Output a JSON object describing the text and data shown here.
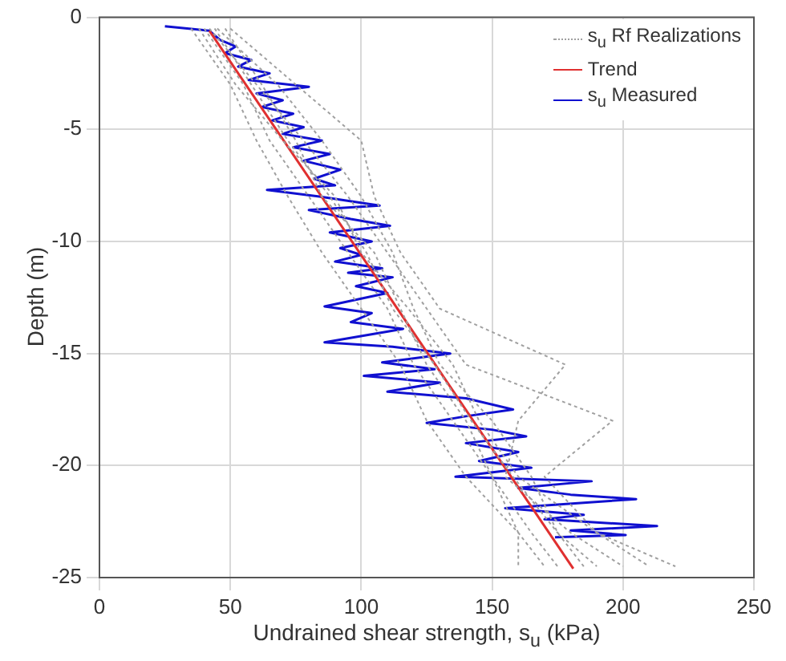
{
  "chart_data": {
    "type": "line",
    "xlabel": "Undrained shear strength, s$_{u}$ (kPa)",
    "ylabel": "Depth (m)",
    "xlim": [
      0,
      250
    ],
    "xticks": [
      0,
      50,
      100,
      150,
      200,
      250
    ],
    "ylim": [
      -25,
      0
    ],
    "yticks": [
      -25,
      -20,
      -15,
      -10,
      -5,
      0
    ],
    "grid": true,
    "legend": "top right",
    "marker": "none",
    "series": [
      {
        "name": "s$_{u}$ Rf Realizations",
        "color": "#a0a0a0",
        "line_style": "dotted",
        "x": [
          40,
          55,
          65,
          80,
          95,
          110,
          120,
          135,
          150,
          165,
          175
        ],
        "values": [
          -0.5,
          -3,
          -5.5,
          -8,
          -10.5,
          -13,
          -15.5,
          -18,
          -20.5,
          -23,
          -24.5
        ]
      },
      {
        "color": "#a0a0a0",
        "line_style": "dotted",
        "x": [
          45,
          68,
          85,
          100,
          112,
          120,
          130,
          150,
          165,
          175,
          185
        ],
        "values": [
          -0.5,
          -3,
          -5.5,
          -8,
          -10.5,
          -13,
          -15.5,
          -18,
          -20.5,
          -23,
          -24.5
        ]
      },
      {
        "color": "#a0a0a0",
        "line_style": "dotted",
        "x": [
          35,
          50,
          60,
          72,
          85,
          100,
          115,
          125,
          140,
          160,
          170
        ],
        "values": [
          -0.5,
          -3,
          -5.5,
          -8,
          -10.5,
          -13,
          -15.5,
          -18,
          -20.5,
          -23,
          -24.5
        ]
      },
      {
        "color": "#a0a0a0",
        "line_style": "dotted",
        "x": [
          50,
          75,
          100,
          105,
          115,
          130,
          178,
          160,
          155,
          180,
          200
        ],
        "values": [
          -0.5,
          -3,
          -5.5,
          -8,
          -10.5,
          -13,
          -15.5,
          -18,
          -20.5,
          -23,
          -24.5
        ]
      },
      {
        "color": "#a0a0a0",
        "line_style": "dotted",
        "x": [
          42,
          60,
          78,
          95,
          110,
          125,
          140,
          196,
          170,
          190,
          220
        ],
        "values": [
          -0.5,
          -3,
          -5.5,
          -8,
          -10.5,
          -13,
          -15.5,
          -18,
          -20.5,
          -23,
          -24.5
        ]
      },
      {
        "color": "#a0a0a0",
        "line_style": "dotted",
        "x": [
          38,
          52,
          70,
          90,
          100,
          118,
          135,
          145,
          160,
          190,
          210
        ],
        "values": [
          -0.5,
          -3,
          -5.5,
          -8,
          -10.5,
          -13,
          -15.5,
          -18,
          -20.5,
          -23,
          -24.5
        ]
      },
      {
        "color": "#a0a0a0",
        "line_style": "dotted",
        "x": [
          48,
          62,
          75,
          85,
          105,
          115,
          125,
          140,
          150,
          160,
          160
        ],
        "values": [
          -0.5,
          -3,
          -5.5,
          -8,
          -10.5,
          -13,
          -15.5,
          -18,
          -20.5,
          -23,
          -24.5
        ]
      },
      {
        "color": "#a0a0a0",
        "line_style": "dotted",
        "x": [
          44,
          58,
          72,
          88,
          102,
          112,
          128,
          142,
          158,
          175,
          190
        ],
        "values": [
          -0.5,
          -3,
          -5.5,
          -8,
          -10.5,
          -13,
          -15.5,
          -18,
          -20.5,
          -23,
          -24.5
        ]
      },
      {
        "name": "Trend",
        "color": "#e03030",
        "line_style": "solid",
        "x": [
          42,
          181
        ],
        "values": [
          -0.6,
          -24.6
        ]
      },
      {
        "name": "s$_{u}$ Measured",
        "color": "#1010d0",
        "line_style": "solid",
        "x": [
          25,
          42,
          46,
          52,
          48,
          58,
          53,
          65,
          57,
          80,
          60,
          70,
          62,
          74,
          66,
          78,
          70,
          85,
          74,
          88,
          78,
          92,
          82,
          90,
          64,
          84,
          107,
          80,
          96,
          111,
          88,
          104,
          92,
          100,
          90,
          108,
          95,
          112,
          98,
          110,
          86,
          104,
          96,
          116,
          86,
          112,
          134,
          108,
          128,
          101,
          130,
          110,
          140,
          158,
          140,
          125,
          150,
          163,
          140,
          160,
          145,
          165,
          136,
          188,
          160,
          180,
          205,
          155,
          185,
          170,
          213,
          180,
          201,
          174
        ],
        "values": [
          -0.4,
          -0.6,
          -1.0,
          -1.3,
          -1.6,
          -1.9,
          -2.2,
          -2.5,
          -2.8,
          -3.1,
          -3.4,
          -3.7,
          -4.0,
          -4.3,
          -4.6,
          -4.9,
          -5.2,
          -5.5,
          -5.8,
          -6.1,
          -6.4,
          -6.8,
          -7.2,
          -7.5,
          -7.7,
          -8.0,
          -8.4,
          -8.6,
          -9.0,
          -9.3,
          -9.6,
          -10.0,
          -10.3,
          -10.6,
          -10.9,
          -11.2,
          -11.4,
          -11.6,
          -12.0,
          -12.3,
          -12.9,
          -13.2,
          -13.6,
          -13.9,
          -14.5,
          -14.7,
          -15.0,
          -15.4,
          -15.7,
          -16.0,
          -16.3,
          -16.7,
          -17.0,
          -17.5,
          -17.8,
          -18.1,
          -18.4,
          -18.7,
          -19.0,
          -19.4,
          -19.8,
          -20.1,
          -20.5,
          -20.7,
          -21.0,
          -21.3,
          -21.5,
          -21.9,
          -22.2,
          -22.4,
          -22.7,
          -22.9,
          -23.1,
          -23.2
        ]
      }
    ]
  }
}
